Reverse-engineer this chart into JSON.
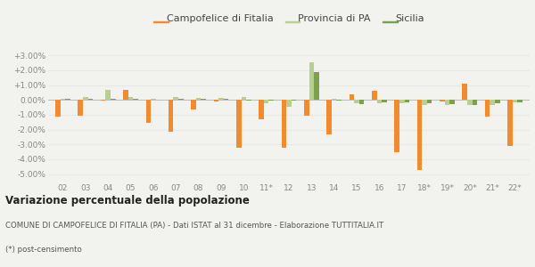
{
  "categories": [
    "02",
    "03",
    "04",
    "05",
    "06",
    "07",
    "08",
    "09",
    "10",
    "11*",
    "12",
    "13",
    "14",
    "15",
    "16",
    "17",
    "18*",
    "19*",
    "20*",
    "21*",
    "22*"
  ],
  "campofelice": [
    -1.1,
    -1.05,
    -0.05,
    0.65,
    -1.55,
    -2.15,
    -0.65,
    -0.1,
    -3.2,
    -1.3,
    -3.2,
    -1.05,
    -2.3,
    0.35,
    0.6,
    -3.5,
    -4.7,
    -0.1,
    1.1,
    -1.1,
    -3.1
  ],
  "provincia": [
    0.1,
    0.2,
    0.7,
    0.2,
    0.05,
    0.2,
    0.15,
    0.15,
    0.2,
    -0.2,
    -0.45,
    2.55,
    0.05,
    -0.2,
    -0.2,
    -0.2,
    -0.35,
    -0.35,
    -0.35,
    -0.35,
    -0.15
  ],
  "sicilia": [
    0.05,
    0.05,
    0.05,
    0.05,
    0.0,
    0.05,
    0.1,
    0.05,
    -0.05,
    -0.05,
    -0.05,
    1.9,
    -0.05,
    -0.3,
    -0.15,
    -0.15,
    -0.25,
    -0.3,
    -0.35,
    -0.2,
    -0.15
  ],
  "campofelice_color": "#f28a30",
  "provincia_color": "#b8cf8e",
  "sicilia_color": "#7aa050",
  "background_color": "#f2f2ee",
  "grid_color": "#e8e8e4",
  "title_bold": "Variazione percentuale della popolazione",
  "subtitle": "COMUNE DI CAMPOFELICE DI FITALIA (PA) - Dati ISTAT al 31 dicembre - Elaborazione TUTTITALIA.IT",
  "footnote": "(*) post-censimento",
  "ylim": [
    -5.5,
    3.5
  ],
  "yticks": [
    -5.0,
    -4.0,
    -3.0,
    -2.0,
    -1.0,
    0.0,
    1.0,
    2.0,
    3.0
  ],
  "ytick_labels": [
    "-5.00%",
    "-4.00%",
    "-3.00%",
    "-2.00%",
    "-1.00%",
    "0.00%",
    "+1.00%",
    "+2.00%",
    "+3.00%"
  ]
}
